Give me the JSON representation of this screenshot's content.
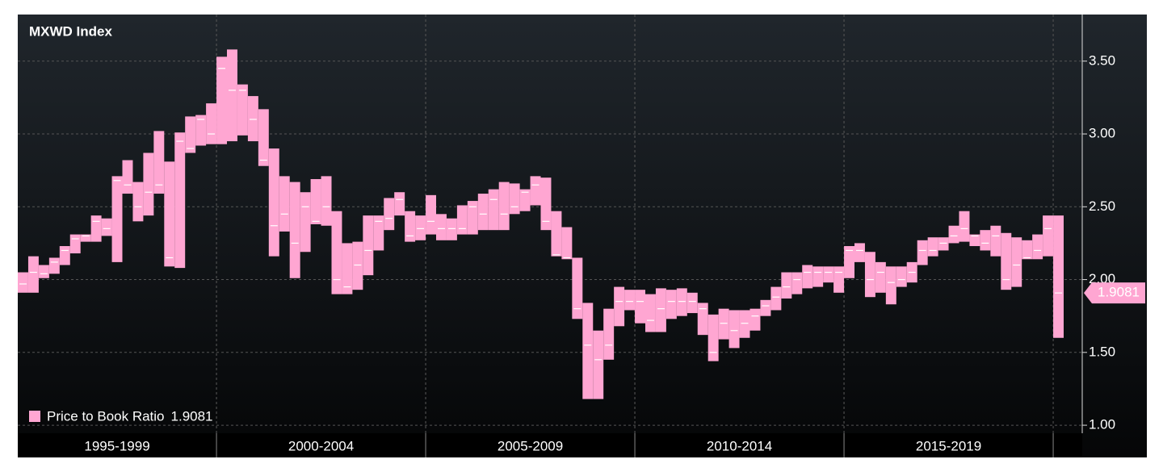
{
  "chart_data": {
    "type": "range-bar",
    "title": "MXWD Index",
    "x_labels": [
      "1995-1999",
      "2000-2004",
      "2005-2009",
      "2010-2014",
      "2015-2019"
    ],
    "ylim": [
      0.945,
      3.82
    ],
    "yticks": [
      {
        "value": 1,
        "label": "1.00"
      },
      {
        "value": 1.5,
        "label": "1.50"
      },
      {
        "value": 2,
        "label": "2.00"
      },
      {
        "value": 2.5,
        "label": "2.50"
      },
      {
        "value": 3,
        "label": "3.00"
      },
      {
        "value": 3.5,
        "label": "3.50"
      }
    ],
    "grid": true,
    "series": [
      {
        "name": "Price to Book Ratio",
        "color": "#ffa6d2",
        "low": [
          1.91,
          1.91,
          2.01,
          2.04,
          2.1,
          2.18,
          2.26,
          2.26,
          2.3,
          2.12,
          2.59,
          2.4,
          2.44,
          2.59,
          2.09,
          2.08,
          2.87,
          2.92,
          2.93,
          2.93,
          2.95,
          2.99,
          2.95,
          2.78,
          2.16,
          2.33,
          2.01,
          2.19,
          2.38,
          2.37,
          1.9,
          1.9,
          1.93,
          2.03,
          2.2,
          2.34,
          2.44,
          2.26,
          2.27,
          2.31,
          2.27,
          2.27,
          2.31,
          2.31,
          2.34,
          2.34,
          2.34,
          2.45,
          2.47,
          2.51,
          2.34,
          2.16,
          2.14,
          1.73,
          1.18,
          1.18,
          1.45,
          1.68,
          1.79,
          1.7,
          1.64,
          1.64,
          1.73,
          1.75,
          1.77,
          1.62,
          1.44,
          1.59,
          1.53,
          1.6,
          1.65,
          1.75,
          1.79,
          1.87,
          1.9,
          1.94,
          1.95,
          1.98,
          1.91,
          2.01,
          2.12,
          1.88,
          1.91,
          1.83,
          1.95,
          1.98,
          2.1,
          2.16,
          2.2,
          2.25,
          2.26,
          2.23,
          2.2,
          2.16,
          1.93,
          1.95,
          2.14,
          2.14,
          2.16,
          1.6
        ],
        "high": [
          2.05,
          2.16,
          2.1,
          2.15,
          2.23,
          2.31,
          2.31,
          2.44,
          2.42,
          2.71,
          2.82,
          2.67,
          2.87,
          3.02,
          2.81,
          3.01,
          3.12,
          3.13,
          3.21,
          3.53,
          3.58,
          3.34,
          3.26,
          3.17,
          2.9,
          2.71,
          2.67,
          2.6,
          2.69,
          2.71,
          2.47,
          2.25,
          2.26,
          2.44,
          2.44,
          2.56,
          2.6,
          2.47,
          2.44,
          2.58,
          2.45,
          2.42,
          2.51,
          2.54,
          2.59,
          2.62,
          2.67,
          2.66,
          2.62,
          2.71,
          2.7,
          2.47,
          2.36,
          2.15,
          1.84,
          1.65,
          1.8,
          1.95,
          1.93,
          1.93,
          1.9,
          1.94,
          1.93,
          1.94,
          1.91,
          1.84,
          1.76,
          1.8,
          1.79,
          1.79,
          1.8,
          1.86,
          1.95,
          2.05,
          2.05,
          2.1,
          2.09,
          2.09,
          2.09,
          2.23,
          2.25,
          2.19,
          2.12,
          2.09,
          2.09,
          2.12,
          2.27,
          2.29,
          2.29,
          2.37,
          2.47,
          2.31,
          2.34,
          2.37,
          2.32,
          2.29,
          2.27,
          2.31,
          2.44,
          2.44
        ],
        "close": [
          1.97,
          2.05,
          2.04,
          2.12,
          2.2,
          2.28,
          2.3,
          2.4,
          2.35,
          2.68,
          2.65,
          2.5,
          2.6,
          2.65,
          2.15,
          2.95,
          2.9,
          3.1,
          3.0,
          3.45,
          3.3,
          3.3,
          3.1,
          2.82,
          2.37,
          2.45,
          2.25,
          2.5,
          2.4,
          2.5,
          2.0,
          1.95,
          2.1,
          2.2,
          2.4,
          2.42,
          2.55,
          2.3,
          2.35,
          2.4,
          2.35,
          2.35,
          2.35,
          2.5,
          2.45,
          2.55,
          2.45,
          2.5,
          2.6,
          2.65,
          2.4,
          2.17,
          2.15,
          1.8,
          1.55,
          1.45,
          1.55,
          1.85,
          1.85,
          1.85,
          1.72,
          1.8,
          1.85,
          1.85,
          1.85,
          1.8,
          1.5,
          1.7,
          1.65,
          1.7,
          1.75,
          1.82,
          1.88,
          1.95,
          2.0,
          2.05,
          2.05,
          2.05,
          2.05,
          2.2,
          2.2,
          2.0,
          2.05,
          1.98,
          2.0,
          2.05,
          2.2,
          2.2,
          2.25,
          2.3,
          2.35,
          2.3,
          2.25,
          2.3,
          2.0,
          2.1,
          2.15,
          2.2,
          2.35,
          1.9081
        ]
      }
    ]
  }
}
